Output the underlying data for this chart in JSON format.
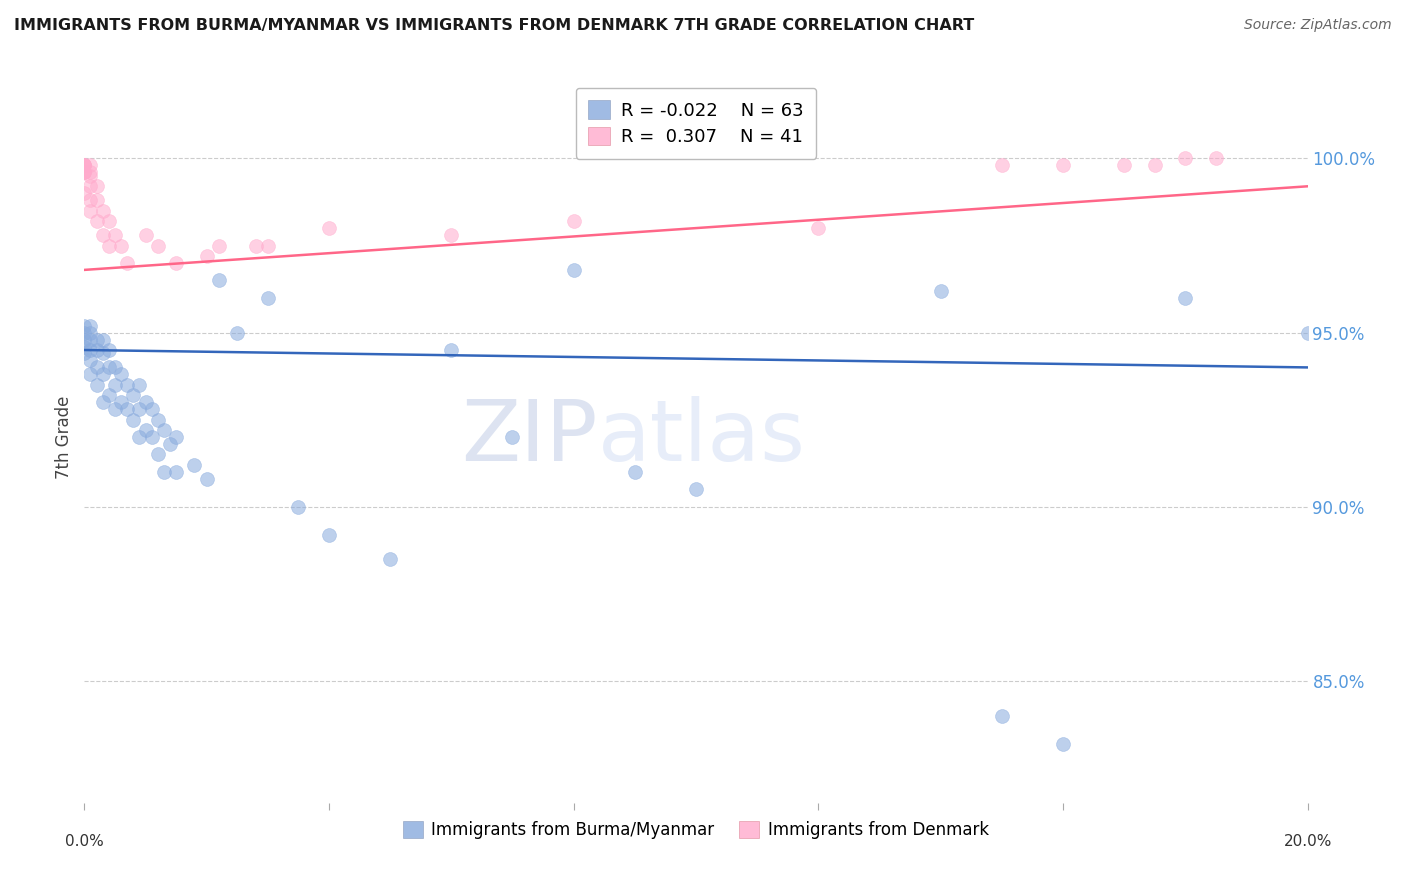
{
  "title": "IMMIGRANTS FROM BURMA/MYANMAR VS IMMIGRANTS FROM DENMARK 7TH GRADE CORRELATION CHART",
  "source": "Source: ZipAtlas.com",
  "ylabel": "7th Grade",
  "ytick_labels": [
    "100.0%",
    "95.0%",
    "90.0%",
    "85.0%"
  ],
  "ytick_values": [
    1.0,
    0.95,
    0.9,
    0.85
  ],
  "xlim": [
    0.0,
    0.2
  ],
  "ylim": [
    0.815,
    1.025
  ],
  "legend_blue_label": "Immigrants from Burma/Myanmar",
  "legend_pink_label": "Immigrants from Denmark",
  "blue_color": "#88AADD",
  "pink_color": "#FFAACC",
  "blue_line_color": "#3366BB",
  "pink_line_color": "#FF6688",
  "watermark_zip": "ZIP",
  "watermark_atlas": "atlas",
  "blue_x": [
    0.0,
    0.0,
    0.0,
    0.0,
    0.0,
    0.001,
    0.001,
    0.001,
    0.001,
    0.001,
    0.001,
    0.002,
    0.002,
    0.002,
    0.002,
    0.003,
    0.003,
    0.003,
    0.003,
    0.004,
    0.004,
    0.004,
    0.005,
    0.005,
    0.005,
    0.006,
    0.006,
    0.007,
    0.007,
    0.008,
    0.008,
    0.009,
    0.009,
    0.009,
    0.01,
    0.01,
    0.011,
    0.011,
    0.012,
    0.012,
    0.013,
    0.013,
    0.014,
    0.015,
    0.015,
    0.018,
    0.02,
    0.022,
    0.025,
    0.03,
    0.035,
    0.04,
    0.05,
    0.06,
    0.07,
    0.08,
    0.09,
    0.1,
    0.14,
    0.15,
    0.16,
    0.18,
    0.2
  ],
  "blue_y": [
    0.952,
    0.95,
    0.948,
    0.946,
    0.944,
    0.952,
    0.95,
    0.948,
    0.945,
    0.942,
    0.938,
    0.948,
    0.945,
    0.94,
    0.935,
    0.948,
    0.944,
    0.938,
    0.93,
    0.945,
    0.94,
    0.932,
    0.94,
    0.935,
    0.928,
    0.938,
    0.93,
    0.935,
    0.928,
    0.932,
    0.925,
    0.935,
    0.928,
    0.92,
    0.93,
    0.922,
    0.928,
    0.92,
    0.925,
    0.915,
    0.922,
    0.91,
    0.918,
    0.92,
    0.91,
    0.912,
    0.908,
    0.965,
    0.95,
    0.96,
    0.9,
    0.892,
    0.885,
    0.945,
    0.92,
    0.968,
    0.91,
    0.905,
    0.962,
    0.84,
    0.832,
    0.96,
    0.95
  ],
  "pink_x": [
    0.0,
    0.0,
    0.0,
    0.0,
    0.0,
    0.0,
    0.0,
    0.0,
    0.001,
    0.001,
    0.001,
    0.001,
    0.001,
    0.001,
    0.002,
    0.002,
    0.002,
    0.003,
    0.003,
    0.004,
    0.004,
    0.005,
    0.006,
    0.007,
    0.01,
    0.012,
    0.015,
    0.02,
    0.022,
    0.028,
    0.03,
    0.04,
    0.06,
    0.08,
    0.12,
    0.15,
    0.16,
    0.17,
    0.175,
    0.18,
    0.185
  ],
  "pink_y": [
    0.998,
    0.998,
    0.998,
    0.998,
    0.996,
    0.996,
    0.996,
    0.99,
    0.998,
    0.996,
    0.995,
    0.992,
    0.988,
    0.985,
    0.992,
    0.988,
    0.982,
    0.985,
    0.978,
    0.982,
    0.975,
    0.978,
    0.975,
    0.97,
    0.978,
    0.975,
    0.97,
    0.972,
    0.975,
    0.975,
    0.975,
    0.98,
    0.978,
    0.982,
    0.98,
    0.998,
    0.998,
    0.998,
    0.998,
    1.0,
    1.0
  ],
  "blue_trend_x": [
    0.0,
    0.2
  ],
  "blue_trend_y": [
    0.945,
    0.94
  ],
  "pink_trend_x": [
    0.0,
    0.2
  ],
  "pink_trend_y": [
    0.968,
    0.992
  ]
}
